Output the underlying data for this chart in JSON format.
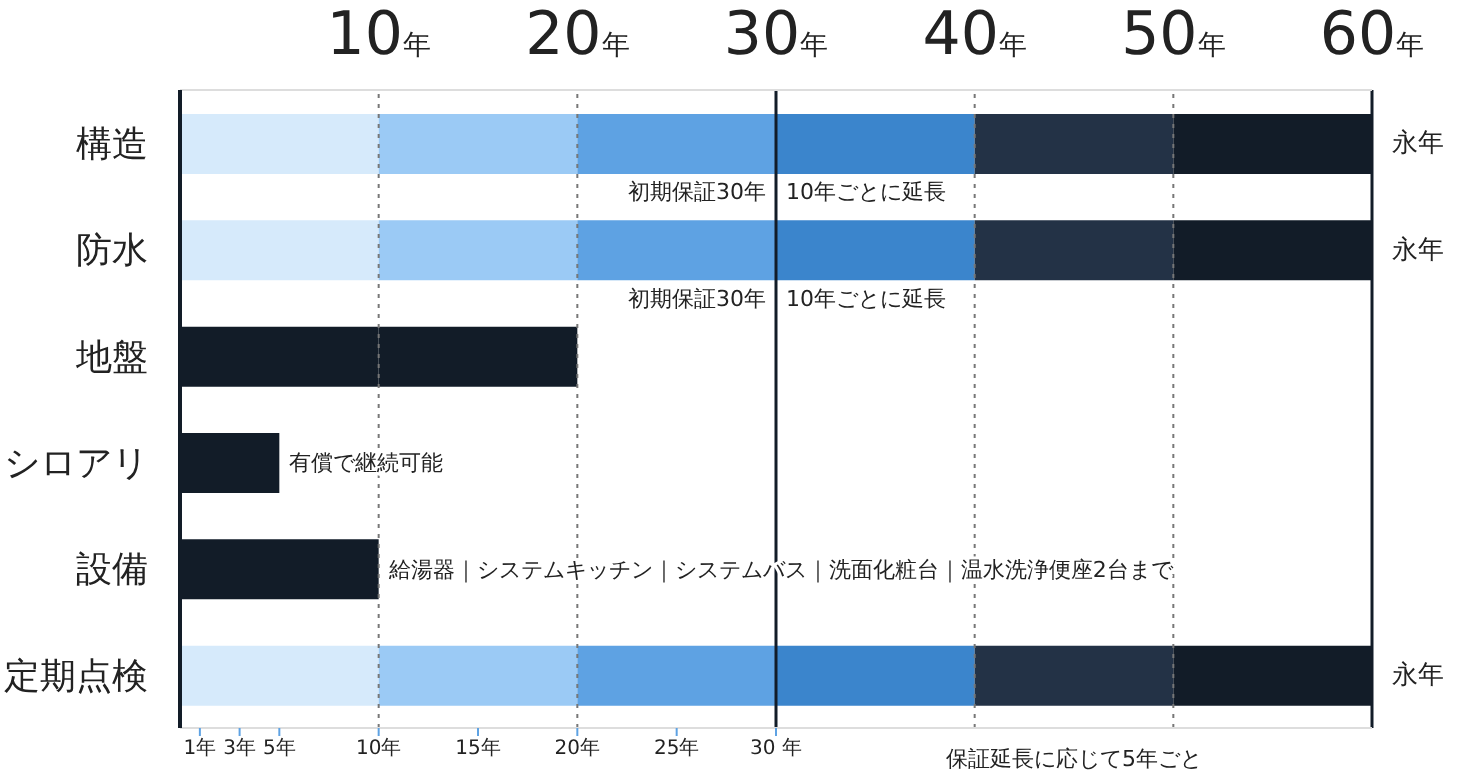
{
  "chart_data": {
    "type": "bar",
    "orientation": "horizontal",
    "stacked": true,
    "categories": [
      "構造",
      "防水",
      "地盤",
      "シロアリ",
      "設備",
      "定期点検"
    ],
    "series": [
      {
        "values": [
          10,
          10,
          10,
          5,
          10,
          10
        ],
        "colors": [
          "#d6eafb",
          "#d6eafb",
          "#121c28",
          "#121c28",
          "#121c28",
          "#d6eafb"
        ]
      },
      {
        "values": [
          10,
          10,
          10,
          null,
          null,
          10
        ],
        "colors": [
          "#9bcaf5",
          "#9bcaf5",
          "#121c28",
          null,
          null,
          "#9bcaf5"
        ]
      },
      {
        "values": [
          10,
          10,
          null,
          null,
          null,
          10
        ],
        "colors": [
          "#5ea2e3",
          "#5ea2e3",
          null,
          null,
          null,
          "#5ea2e3"
        ]
      },
      {
        "values": [
          10,
          10,
          null,
          null,
          null,
          10
        ],
        "colors": [
          "#3b85cc",
          "#3b85cc",
          null,
          null,
          null,
          "#3b85cc"
        ]
      },
      {
        "values": [
          10,
          10,
          null,
          null,
          null,
          10
        ],
        "colors": [
          "#233246",
          "#233246",
          null,
          null,
          null,
          "#233246"
        ]
      },
      {
        "values": [
          10,
          10,
          null,
          null,
          null,
          10
        ],
        "colors": [
          "#121c28",
          "#121c28",
          null,
          null,
          null,
          "#121c28"
        ]
      }
    ],
    "xlim": [
      0,
      60
    ],
    "xticks": [
      {
        "value": 1,
        "label": "1年"
      },
      {
        "value": 3,
        "label": "3年"
      },
      {
        "value": 5,
        "label": "5年"
      },
      {
        "value": 10,
        "label": "10年"
      },
      {
        "value": 15,
        "label": "15年"
      },
      {
        "value": 20,
        "label": "20年"
      },
      {
        "value": 25,
        "label": "25年"
      },
      {
        "value": 30,
        "label": "30 年"
      }
    ],
    "x2ticks": [
      {
        "value": 10,
        "label": "10年"
      },
      {
        "value": 20,
        "label": "20年"
      },
      {
        "value": 30,
        "label": "30年"
      },
      {
        "value": 40,
        "label": "40年"
      },
      {
        "value": 50,
        "label": "50年"
      },
      {
        "value": 60,
        "label": "60年"
      }
    ],
    "x2lim": [
      0,
      60
    ],
    "ref_lines": [
      {
        "axis": "x",
        "value": 10,
        "line_style": "dotted",
        "color": "#777777"
      },
      {
        "axis": "x",
        "value": 20,
        "line_style": "dotted",
        "color": "#777777"
      },
      {
        "axis": "x",
        "value": 30,
        "line_style": "solid",
        "color": "#121c28"
      },
      {
        "axis": "x",
        "value": 40,
        "line_style": "dotted",
        "color": "#777777"
      },
      {
        "axis": "x",
        "value": 50,
        "line_style": "dotted",
        "color": "#777777"
      },
      {
        "axis": "x",
        "value": 60,
        "line_style": "solid",
        "color": "#121c28"
      }
    ],
    "annotations": [
      {
        "text": "永年",
        "x": 60,
        "y": "構造"
      },
      {
        "text": "初期保証30年",
        "x": 30,
        "y": "構造"
      },
      {
        "text": "10年ごとに延長",
        "x": 30,
        "y": "構造"
      },
      {
        "text": "永年",
        "x": 60,
        "y": "防水"
      },
      {
        "text": "初期保証30年",
        "x": 30,
        "y": "防水"
      },
      {
        "text": "10年ごとに延長",
        "x": 30,
        "y": "防水"
      },
      {
        "text": "有償で継続可能",
        "x": 5,
        "y": "シロアリ"
      },
      {
        "text": "給湯器｜システムキッチン｜システムバス｜洗面化粧台｜温水洗浄便座2台まで",
        "x": 10,
        "y": "設備"
      },
      {
        "text": "永年",
        "x": 60,
        "y": "定期点検"
      },
      "保証延長に応じて5年ごと"
    ]
  }
}
